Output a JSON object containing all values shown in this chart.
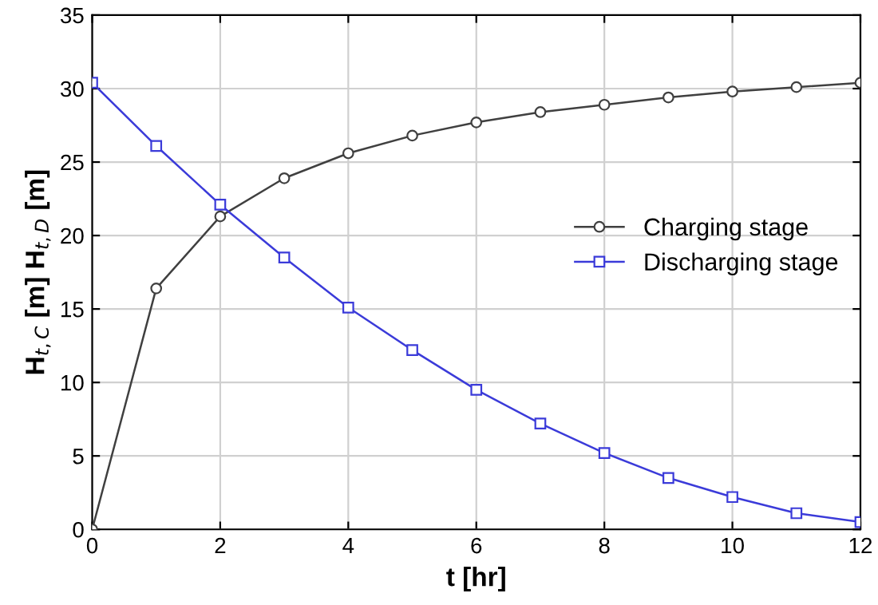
{
  "chart_data": {
    "type": "line",
    "xlabel": "t [hr]",
    "ylabel": "H$_{t,C}$ [m] H$_{t,D}$ [m]",
    "x": [
      0,
      1,
      2,
      3,
      4,
      5,
      6,
      7,
      8,
      9,
      10,
      11,
      12
    ],
    "series": [
      {
        "name": "Charging stage",
        "color": "#404040",
        "marker": "circle",
        "values": [
          0,
          16.4,
          21.3,
          23.9,
          25.6,
          26.8,
          27.7,
          28.4,
          28.9,
          29.4,
          29.8,
          30.1,
          30.4
        ]
      },
      {
        "name": "Discharging stage",
        "color": "#3b3bd9",
        "marker": "square",
        "values": [
          30.4,
          26.1,
          22.1,
          18.5,
          15.1,
          12.2,
          9.5,
          7.2,
          5.2,
          3.5,
          2.2,
          1.1,
          0.5
        ]
      }
    ],
    "xlim": [
      0,
      12
    ],
    "xticks": [
      0,
      2,
      4,
      6,
      8,
      10,
      12
    ],
    "ylim": [
      0,
      35
    ],
    "yticks": [
      0,
      5,
      10,
      15,
      20,
      25,
      30,
      35
    ],
    "grid": true,
    "legend": "right",
    "line_style": "solid"
  }
}
